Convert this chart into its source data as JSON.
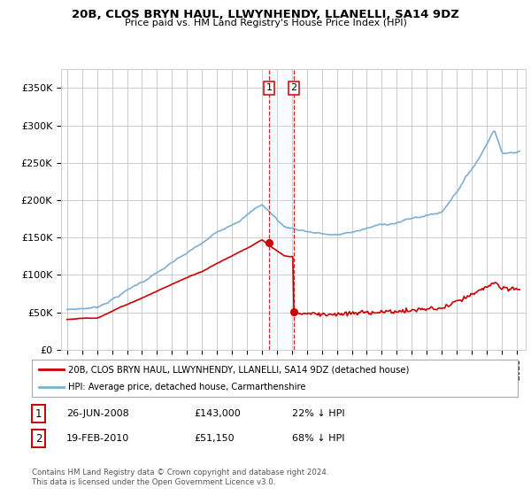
{
  "title": "20B, CLOS BRYN HAUL, LLWYNHENDY, LLANELLI, SA14 9DZ",
  "subtitle": "Price paid vs. HM Land Registry's House Price Index (HPI)",
  "yticks": [
    0,
    50000,
    100000,
    150000,
    200000,
    250000,
    300000,
    350000
  ],
  "ytick_labels": [
    "£0",
    "£50K",
    "£100K",
    "£150K",
    "£200K",
    "£250K",
    "£300K",
    "£350K"
  ],
  "ylim": [
    0,
    375000
  ],
  "xlim_start": 1994.6,
  "xlim_end": 2025.6,
  "transaction1_date": 2008.48,
  "transaction1_price": 143000,
  "transaction2_date": 2010.13,
  "transaction2_price": 51150,
  "legend_entries": [
    "20B, CLOS BRYN HAUL, LLWYNHENDY, LLANELLI, SA14 9DZ (detached house)",
    "HPI: Average price, detached house, Carmarthenshire"
  ],
  "table_rows": [
    {
      "label": "1",
      "date": "26-JUN-2008",
      "price": "£143,000",
      "pct": "22% ↓ HPI"
    },
    {
      "label": "2",
      "date": "19-FEB-2010",
      "price": "£51,150",
      "pct": "68% ↓ HPI"
    }
  ],
  "footer": "Contains HM Land Registry data © Crown copyright and database right 2024.\nThis data is licensed under the Open Government Licence v3.0.",
  "hpi_color": "#7bafd4",
  "price_color": "#cc0000",
  "vline_color": "#cc0000",
  "fill_color": "#ddeeff",
  "bg_color": "#ffffff",
  "grid_color": "#cccccc",
  "legend_border_color": "#aaaaaa",
  "table_box_color": "#cc0000"
}
